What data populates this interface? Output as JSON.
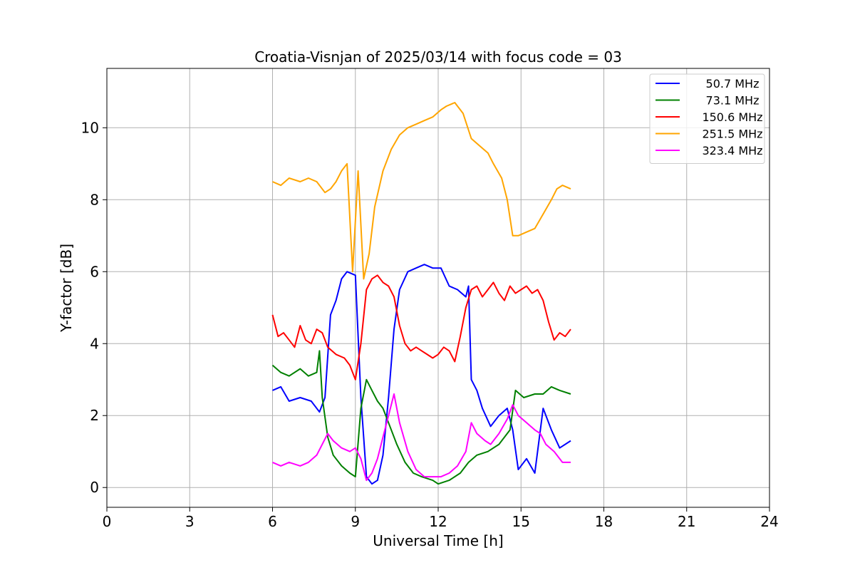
{
  "chart_data": {
    "type": "line",
    "title": "Croatia-Visnjan of 2025/03/14 with focus code = 03",
    "xlabel": "Universal Time [h]",
    "ylabel": "Y-factor [dB]",
    "xlim": [
      0,
      24
    ],
    "ylim": [
      -0.55,
      11.65
    ],
    "xticks": [
      0,
      3,
      6,
      9,
      12,
      15,
      18,
      21,
      24
    ],
    "yticks": [
      0,
      2,
      4,
      6,
      8,
      10
    ],
    "grid": true,
    "legend": "top-right",
    "series": [
      {
        "name": "50.7 MHz",
        "color": "#0000ff",
        "x": [
          6.0,
          6.3,
          6.6,
          7.0,
          7.4,
          7.7,
          7.9,
          8.1,
          8.3,
          8.5,
          8.7,
          9.0,
          9.2,
          9.4,
          9.6,
          9.8,
          10.0,
          10.2,
          10.4,
          10.6,
          10.9,
          11.2,
          11.5,
          11.8,
          12.1,
          12.4,
          12.7,
          13.0,
          13.1,
          13.2,
          13.4,
          13.6,
          13.9,
          14.2,
          14.5,
          14.7,
          14.9,
          15.2,
          15.5,
          15.8,
          16.1,
          16.4,
          16.8
        ],
        "y": [
          2.7,
          2.8,
          2.4,
          2.5,
          2.4,
          2.1,
          2.5,
          4.8,
          5.2,
          5.8,
          6.0,
          5.9,
          2.5,
          0.3,
          0.1,
          0.2,
          0.9,
          2.5,
          4.4,
          5.5,
          6.0,
          6.1,
          6.2,
          6.1,
          6.1,
          5.6,
          5.5,
          5.3,
          5.6,
          3.0,
          2.7,
          2.2,
          1.7,
          2.0,
          2.2,
          1.6,
          0.5,
          0.8,
          0.4,
          2.2,
          1.6,
          1.1,
          1.3
        ]
      },
      {
        "name": "73.1 MHz",
        "color": "#008000",
        "x": [
          6.0,
          6.3,
          6.6,
          7.0,
          7.3,
          7.6,
          7.7,
          7.8,
          8.0,
          8.2,
          8.5,
          8.8,
          9.0,
          9.2,
          9.4,
          9.6,
          9.8,
          10.0,
          10.2,
          10.5,
          10.8,
          11.1,
          11.4,
          11.8,
          12.0,
          12.4,
          12.8,
          13.1,
          13.4,
          13.8,
          14.2,
          14.6,
          14.8,
          15.1,
          15.5,
          15.8,
          16.1,
          16.4,
          16.8
        ],
        "y": [
          3.4,
          3.2,
          3.1,
          3.3,
          3.1,
          3.2,
          3.8,
          2.5,
          1.4,
          0.9,
          0.6,
          0.4,
          0.3,
          2.2,
          3.0,
          2.7,
          2.4,
          2.2,
          1.8,
          1.2,
          0.7,
          0.4,
          0.3,
          0.2,
          0.1,
          0.2,
          0.4,
          0.7,
          0.9,
          1.0,
          1.2,
          1.6,
          2.7,
          2.5,
          2.6,
          2.6,
          2.8,
          2.7,
          2.6
        ]
      },
      {
        "name": "150.6 MHz",
        "color": "#ff0000",
        "x": [
          6.0,
          6.2,
          6.4,
          6.6,
          6.8,
          7.0,
          7.2,
          7.4,
          7.6,
          7.8,
          8.0,
          8.3,
          8.6,
          8.8,
          9.0,
          9.2,
          9.4,
          9.6,
          9.8,
          10.0,
          10.2,
          10.4,
          10.6,
          10.8,
          11.0,
          11.2,
          11.4,
          11.6,
          11.8,
          12.0,
          12.2,
          12.4,
          12.6,
          12.8,
          13.0,
          13.2,
          13.4,
          13.6,
          13.8,
          14.0,
          14.2,
          14.4,
          14.6,
          14.8,
          15.0,
          15.2,
          15.4,
          15.6,
          15.8,
          16.0,
          16.2,
          16.4,
          16.6,
          16.8
        ],
        "y": [
          4.8,
          4.2,
          4.3,
          4.1,
          3.9,
          4.5,
          4.1,
          4.0,
          4.4,
          4.3,
          3.9,
          3.7,
          3.6,
          3.4,
          3.0,
          4.0,
          5.5,
          5.8,
          5.9,
          5.7,
          5.6,
          5.3,
          4.5,
          4.0,
          3.8,
          3.9,
          3.8,
          3.7,
          3.6,
          3.7,
          3.9,
          3.8,
          3.5,
          4.2,
          5.0,
          5.5,
          5.6,
          5.3,
          5.5,
          5.7,
          5.4,
          5.2,
          5.6,
          5.4,
          5.5,
          5.6,
          5.4,
          5.5,
          5.2,
          4.6,
          4.1,
          4.3,
          4.2,
          4.4
        ]
      },
      {
        "name": "251.5 MHz",
        "color": "#ffa500",
        "x": [
          6.0,
          6.3,
          6.6,
          7.0,
          7.3,
          7.6,
          7.9,
          8.1,
          8.3,
          8.5,
          8.7,
          8.9,
          9.1,
          9.3,
          9.5,
          9.7,
          10.0,
          10.3,
          10.6,
          10.9,
          11.2,
          11.5,
          11.8,
          12.1,
          12.3,
          12.6,
          12.9,
          13.2,
          13.5,
          13.8,
          14.0,
          14.3,
          14.5,
          14.7,
          14.9,
          15.2,
          15.5,
          15.8,
          16.1,
          16.3,
          16.5,
          16.8
        ],
        "y": [
          8.5,
          8.4,
          8.6,
          8.5,
          8.6,
          8.5,
          8.2,
          8.3,
          8.5,
          8.8,
          9.0,
          6.0,
          8.8,
          5.8,
          6.5,
          7.8,
          8.8,
          9.4,
          9.8,
          10.0,
          10.1,
          10.2,
          10.3,
          10.5,
          10.6,
          10.7,
          10.4,
          9.7,
          9.5,
          9.3,
          9.0,
          8.6,
          8.0,
          7.0,
          7.0,
          7.1,
          7.2,
          7.6,
          8.0,
          8.3,
          8.4,
          8.3
        ]
      },
      {
        "name": "323.4 MHz",
        "color": "#ff00ff",
        "x": [
          6.0,
          6.3,
          6.6,
          7.0,
          7.3,
          7.6,
          7.8,
          8.0,
          8.2,
          8.5,
          8.8,
          9.0,
          9.2,
          9.4,
          9.6,
          9.8,
          10.0,
          10.2,
          10.4,
          10.6,
          10.9,
          11.2,
          11.5,
          11.8,
          12.1,
          12.4,
          12.7,
          13.0,
          13.2,
          13.4,
          13.7,
          13.9,
          14.2,
          14.5,
          14.7,
          14.9,
          15.2,
          15.5,
          15.7,
          15.9,
          16.2,
          16.5,
          16.8
        ],
        "y": [
          0.7,
          0.6,
          0.7,
          0.6,
          0.7,
          0.9,
          1.2,
          1.5,
          1.3,
          1.1,
          1.0,
          1.1,
          0.8,
          0.2,
          0.4,
          0.8,
          1.4,
          2.0,
          2.6,
          1.8,
          1.0,
          0.5,
          0.3,
          0.3,
          0.3,
          0.4,
          0.6,
          1.0,
          1.8,
          1.5,
          1.3,
          1.2,
          1.5,
          1.9,
          2.3,
          2.0,
          1.8,
          1.6,
          1.5,
          1.2,
          1.0,
          0.7,
          0.7
        ]
      }
    ]
  }
}
